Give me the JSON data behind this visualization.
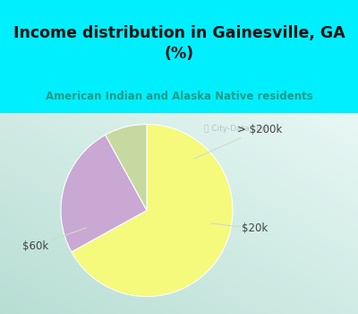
{
  "title": "Income distribution in Gainesville, GA\n(%)",
  "subtitle": "American Indian and Alaska Native residents",
  "slices": [
    67.0,
    25.0,
    8.0
  ],
  "slice_order": [
    "yellow",
    "purple",
    "green"
  ],
  "labels": [
    "$60k",
    "> $200k",
    "$20k"
  ],
  "colors": [
    "#f5f97c",
    "#c9a8d4",
    "#c5d9a0"
  ],
  "start_angle": 90,
  "counterclock": false,
  "bg_color": "#00efff",
  "chart_bg_top": "#e8f8f4",
  "chart_bg_bottom": "#c8e8e0",
  "title_color": "#111111",
  "subtitle_color": "#229988",
  "label_color": "#444444",
  "watermark": "City-Data.com",
  "watermark_color": "#aabbbb",
  "edge_color": "#ffffff",
  "line_color": "#ccddcc"
}
